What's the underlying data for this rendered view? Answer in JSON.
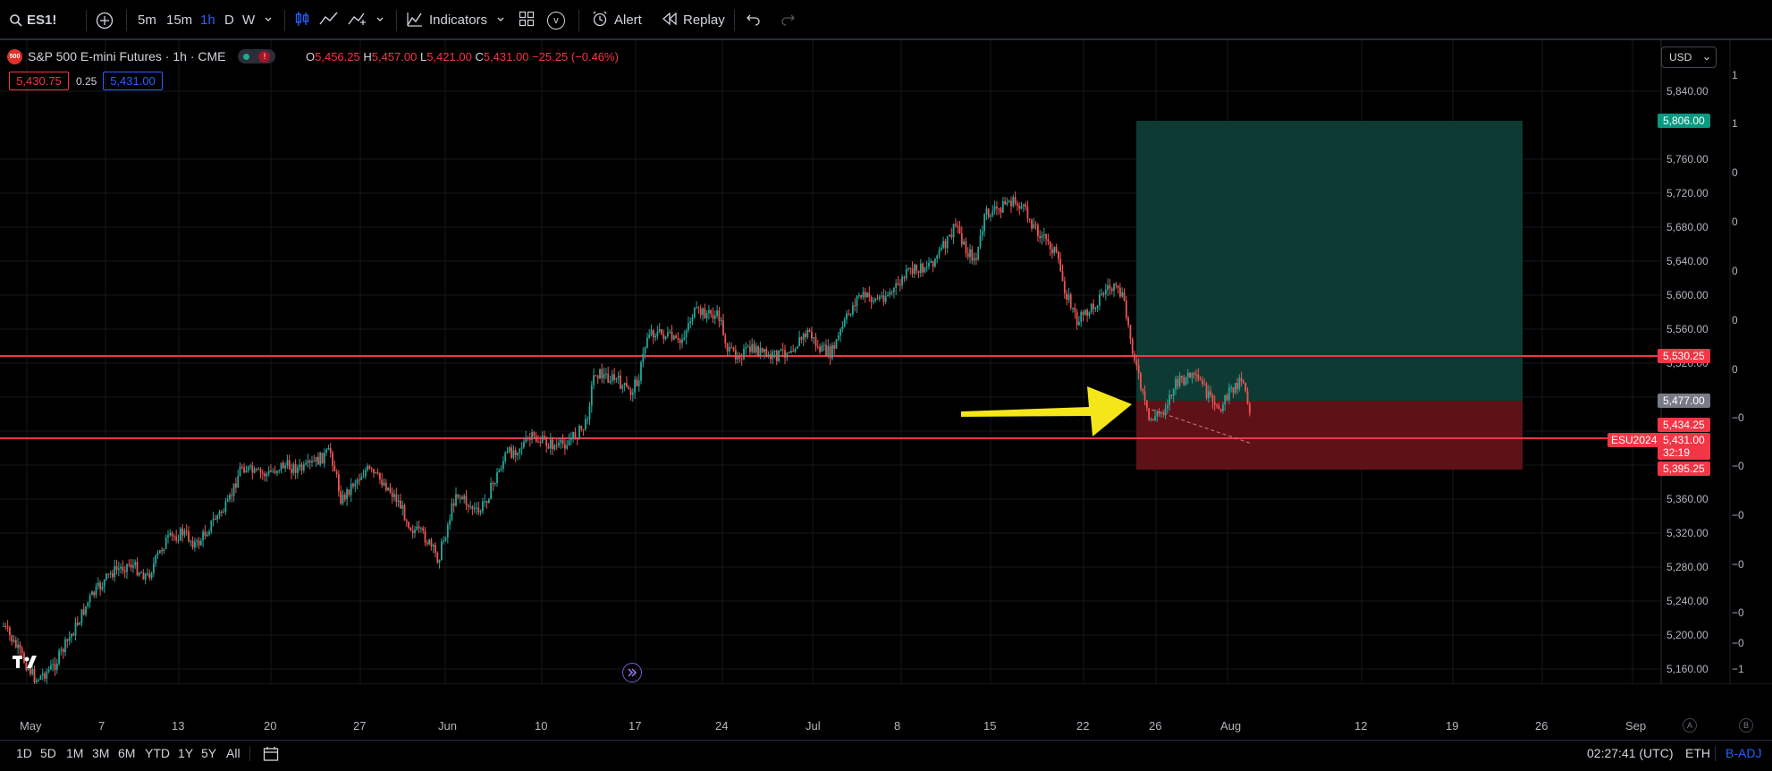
{
  "toolbar": {
    "symbol": "ES1!",
    "intervals": [
      "5m",
      "15m",
      "1h",
      "D",
      "W"
    ],
    "active_interval": "1h",
    "indicators_label": "Indicators",
    "v_label": "v",
    "alert_label": "Alert",
    "replay_label": "Replay"
  },
  "legend": {
    "symbol_badge": "500",
    "title": "S&P 500 E-mini Futures · 1h · CME",
    "status_mark": "!",
    "ohlc": {
      "o_key": "O",
      "o": "5,456.25",
      "h_key": "H",
      "h": "5,457.00",
      "l_key": "L",
      "l": "5,421.00",
      "c_key": "C",
      "c": "5,431.00",
      "change": "−25.25 (−0.46%)"
    },
    "bid": "5,430.75",
    "spread": "0.25",
    "ask": "5,431.00"
  },
  "currency": "USD",
  "price_axis": {
    "ticks": [
      "5,840.00",
      "5,760.00",
      "5,720.00",
      "5,680.00",
      "5,640.00",
      "5,600.00",
      "5,560.00",
      "5,520.00",
      "5,360.00",
      "5,320.00",
      "5,280.00",
      "5,240.00",
      "5,200.00",
      "5,160.00"
    ],
    "tags": {
      "target": "5,806.00",
      "resistance": "5,530.25",
      "entry": "5,477.00",
      "level_1": "5,434.25",
      "last": "5,431.00",
      "countdown": "32:19",
      "stop": "5,395.25",
      "contract": "ESU2024"
    },
    "secondary": [
      "1",
      "1",
      "0",
      "0",
      "0",
      "0",
      "0",
      "−0",
      "−0",
      "−0",
      "−0",
      "−0",
      "−0",
      "−1"
    ]
  },
  "time_axis": [
    "May",
    "7",
    "13",
    "20",
    "27",
    "Jun",
    "10",
    "17",
    "24",
    "Jul",
    "8",
    "15",
    "22",
    "26",
    "Aug",
    "12",
    "19",
    "26",
    "Sep"
  ],
  "bottom_bar": {
    "ranges": [
      "1D",
      "5D",
      "1M",
      "3M",
      "6M",
      "YTD",
      "1Y",
      "5Y",
      "All"
    ],
    "clock": "02:27:41 (UTC)",
    "session": "ETH",
    "adjust": "B-ADJ"
  },
  "colors": {
    "up": "#26a69a",
    "down": "#ef5350",
    "hline": "#f23645",
    "profit_zone": "#0d3b33",
    "loss_zone": "#5e1218",
    "arrow": "#f5e61a"
  }
}
